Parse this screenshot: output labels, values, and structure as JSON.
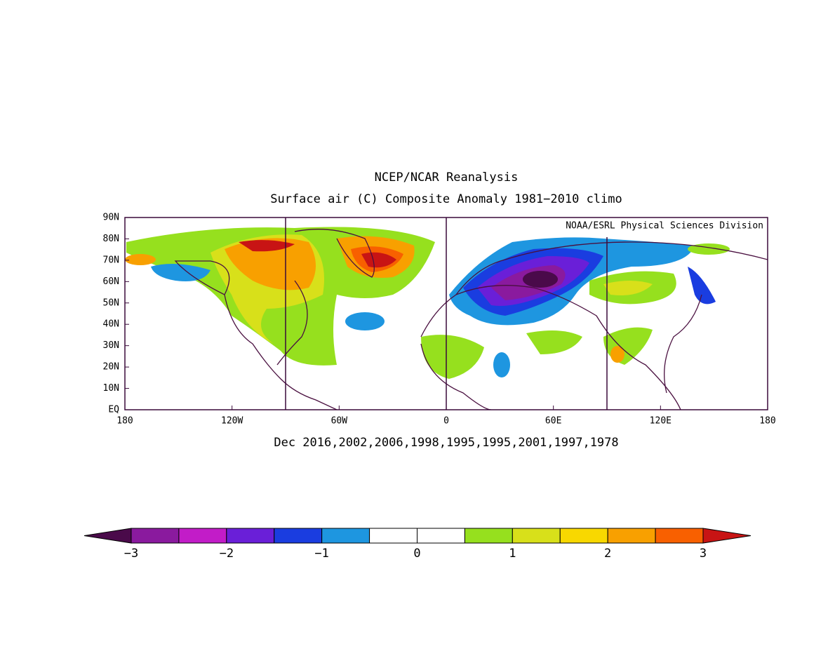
{
  "title": "NCEP/NCAR Reanalysis",
  "subtitle": "Surface air (C) Composite Anomaly 1981−2010 climo",
  "credit": "NOAA/ESRL Physical Sciences Division",
  "caption": "Dec 2016,2002,2006,1998,1995,1995,2001,1997,1978",
  "map": {
    "lat_labels": [
      "EQ",
      "10N",
      "20N",
      "30N",
      "40N",
      "50N",
      "60N",
      "70N",
      "80N",
      "90N"
    ],
    "lon_labels": [
      "180",
      "120W",
      "60W",
      "0",
      "60E",
      "120E",
      "180"
    ]
  },
  "colorbar": {
    "low_color": "#4a0a4a",
    "high_color": "#c81414",
    "colors": [
      "#8a1a9e",
      "#c21cc8",
      "#6a1fd8",
      "#1a3de0",
      "#1e96e0",
      "#ffffff",
      "#ffffff",
      "#96e01e",
      "#d8e01a",
      "#f8d800",
      "#f8a000",
      "#f86000"
    ],
    "labels": [
      "−3",
      "−2",
      "−1",
      "0",
      "1",
      "2",
      "3"
    ]
  }
}
